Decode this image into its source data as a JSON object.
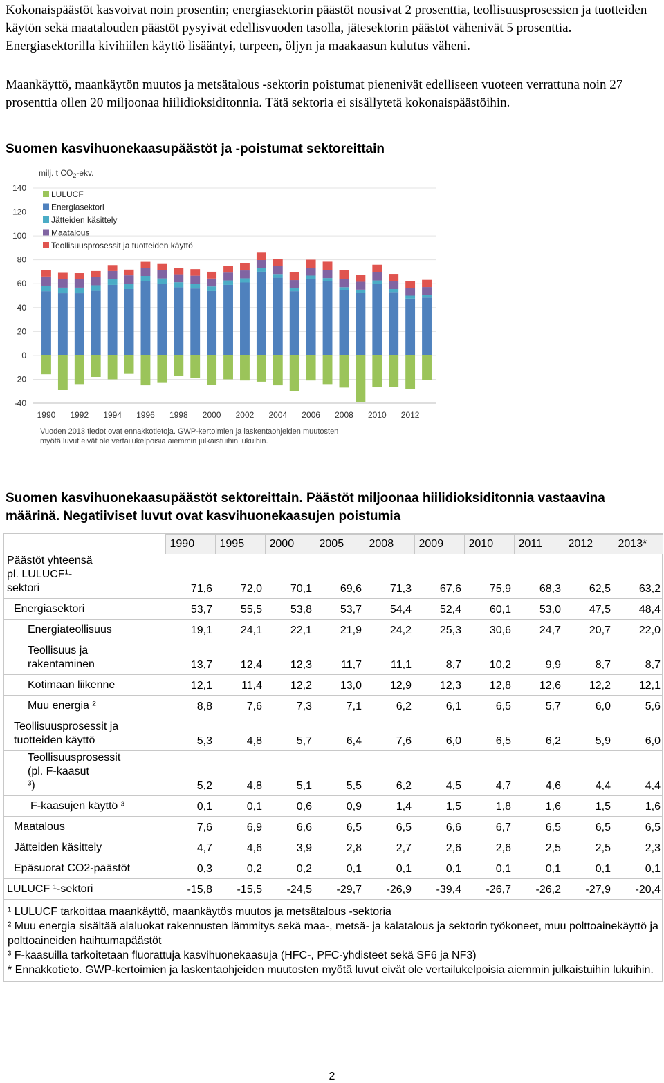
{
  "intro": {
    "paragraph1": "Kokonaispäästöt kasvoivat noin prosentin; energiasektorin päästöt nousivat 2 prosenttia, teollisuusprosessien ja tuotteiden käytön sekä maatalouden päästöt pysyivät edellisvuoden tasolla, jätesektorin päästöt vähenivät 5 prosenttia. Energiasektorilla kivihiilen käyttö lisääntyi, turpeen, öljyn ja maakaasun kulutus väheni.",
    "paragraph2": "Maankäyttö, maankäytön muutos ja metsätalous -sektorin poistumat pienenivät edelliseen vuoteen verrattuna noin 27 prosenttia ollen 20 miljoonaa hiilidioksiditonnia. Tätä sektoria ei sisällytetä kokonaispäästöihin."
  },
  "chart_section": {
    "title": "Suomen kasvihuonekaasupäästöt ja -poistumat sektoreittain"
  },
  "chart_data": {
    "type": "bar",
    "stacked": true,
    "unit_label_prefix": "milj. t CO",
    "unit_label_sub": "2",
    "unit_label_suffix": "-ekv.",
    "ylim": [
      -40,
      140
    ],
    "yticks": [
      -40,
      -20,
      0,
      20,
      40,
      60,
      80,
      100,
      120,
      140
    ],
    "x": [
      1990,
      1991,
      1992,
      1993,
      1994,
      1995,
      1996,
      1997,
      1998,
      1999,
      2000,
      2001,
      2002,
      2003,
      2004,
      2005,
      2006,
      2007,
      2008,
      2009,
      2010,
      2011,
      2012,
      2013
    ],
    "xtick_labels": [
      "1990",
      "1992",
      "1994",
      "1996",
      "1998",
      "2000",
      "2002",
      "2004",
      "2006",
      "2008",
      "2010",
      "2012"
    ],
    "grid": true,
    "legend_position": "top-left",
    "series": [
      {
        "name": "LULUCF",
        "color": "#9bc45a",
        "values": [
          -15.8,
          -29,
          -24,
          -18,
          -20,
          -15.5,
          -25,
          -23,
          -17,
          -19,
          -24.5,
          -20,
          -21,
          -22,
          -25,
          -29.7,
          -21,
          -24,
          -26.9,
          -39.4,
          -26.7,
          -26.2,
          -27.9,
          -20.4
        ]
      },
      {
        "name": "Energiasektori",
        "color": "#4f81bd",
        "values": [
          53.7,
          52,
          52,
          54,
          59,
          55.5,
          62,
          60,
          57,
          56,
          53.8,
          59,
          61,
          70,
          65,
          53.7,
          64,
          62,
          54.4,
          52.4,
          60.1,
          53.0,
          47.5,
          48.4
        ]
      },
      {
        "name": "Jätteiden käsittely",
        "color": "#4bacc6",
        "values": [
          4.7,
          4.7,
          4.7,
          4.7,
          4.6,
          4.6,
          4.5,
          4.4,
          4.2,
          4.0,
          3.9,
          3.7,
          3.5,
          3.3,
          3.1,
          2.8,
          2.8,
          2.7,
          2.7,
          2.6,
          2.6,
          2.5,
          2.5,
          2.3
        ]
      },
      {
        "name": "Maatalous",
        "color": "#8064a2",
        "values": [
          7.6,
          7.4,
          7.2,
          7.0,
          7.0,
          6.9,
          6.8,
          6.8,
          6.7,
          6.7,
          6.6,
          6.6,
          6.6,
          6.5,
          6.5,
          6.5,
          6.5,
          6.5,
          6.5,
          6.6,
          6.7,
          6.5,
          6.5,
          6.5
        ]
      },
      {
        "name": "Teollisuusprosessit ja tuotteiden käyttö",
        "color": "#e0544f",
        "values": [
          5.3,
          5.0,
          4.9,
          4.9,
          5.0,
          4.8,
          5.0,
          5.3,
          5.4,
          5.5,
          5.7,
          5.8,
          6.0,
          6.2,
          6.3,
          6.4,
          6.8,
          7.2,
          7.6,
          6.0,
          6.5,
          6.2,
          5.9,
          6.0
        ]
      }
    ],
    "footnote_line1": "Vuoden 2013 tiedot ovat ennakkotietoja. GWP-kertoimien ja laskentaohjeiden muutosten",
    "footnote_line2": "myötä luvut eivät ole vertailukelpoisia aiemmin julkaistuihin lukuihin."
  },
  "table_section": {
    "title": "Suomen kasvihuonekaasupäästöt sektoreittain. Päästöt miljoonaa hiilidioksiditonnia vastaavina määrinä. Negatiiviset luvut ovat kasvihuonekaasujen poistumia"
  },
  "table": {
    "years": [
      "1990",
      "1995",
      "2000",
      "2005",
      "2008",
      "2009",
      "2010",
      "2011",
      "2012",
      "2013*"
    ],
    "rows": [
      {
        "label": "Päästöt yhteensä pl. LULUCF¹-sektori",
        "level": 0,
        "values": [
          "71,6",
          "72,0",
          "70,1",
          "69,6",
          "71,3",
          "67,6",
          "75,9",
          "68,3",
          "62,5",
          "63,2"
        ]
      },
      {
        "label": "Energiasektori",
        "level": 1,
        "values": [
          "53,7",
          "55,5",
          "53,8",
          "53,7",
          "54,4",
          "52,4",
          "60,1",
          "53,0",
          "47,5",
          "48,4"
        ]
      },
      {
        "label": "Energiateollisuus",
        "level": 2,
        "values": [
          "19,1",
          "24,1",
          "22,1",
          "21,9",
          "24,2",
          "25,3",
          "30,6",
          "24,7",
          "20,7",
          "22,0"
        ]
      },
      {
        "label": "Teollisuus ja rakentaminen",
        "level": 2,
        "values": [
          "13,7",
          "12,4",
          "12,3",
          "11,7",
          "11,1",
          "8,7",
          "10,2",
          "9,9",
          "8,7",
          "8,7"
        ]
      },
      {
        "label": "Kotimaan liikenne",
        "level": 2,
        "values": [
          "12,1",
          "11,4",
          "12,2",
          "13,0",
          "12,9",
          "12,3",
          "12,8",
          "12,6",
          "12,2",
          "12,1"
        ]
      },
      {
        "label": "Muu energia ²",
        "level": 2,
        "values": [
          "8,8",
          "7,6",
          "7,3",
          "7,1",
          "6,2",
          "6,1",
          "6,5",
          "5,7",
          "6,0",
          "5,6"
        ]
      },
      {
        "label": "Teollisuusprosessit ja tuotteiden käyttö",
        "level": 1,
        "values": [
          "5,3",
          "4,8",
          "5,7",
          "6,4",
          "7,6",
          "6,0",
          "6,5",
          "6,2",
          "5,9",
          "6,0"
        ]
      },
      {
        "label": "Teollisuusprosessit (pl. F-kaasut ³)",
        "level": 2,
        "values": [
          "5,2",
          "4,8",
          "5,1",
          "5,5",
          "6,2",
          "4,5",
          "4,7",
          "4,6",
          "4,4",
          "4,4"
        ]
      },
      {
        "label": "F-kaasujen käyttö ³",
        "level": 3,
        "values": [
          "0,1",
          "0,1",
          "0,6",
          "0,9",
          "1,4",
          "1,5",
          "1,8",
          "1,6",
          "1,5",
          "1,6"
        ]
      },
      {
        "label": "Maatalous",
        "level": 1,
        "values": [
          "7,6",
          "6,9",
          "6,6",
          "6,5",
          "6,5",
          "6,6",
          "6,7",
          "6,5",
          "6,5",
          "6,5"
        ]
      },
      {
        "label": "Jätteiden käsittely",
        "level": 1,
        "values": [
          "4,7",
          "4,6",
          "3,9",
          "2,8",
          "2,7",
          "2,6",
          "2,6",
          "2,5",
          "2,5",
          "2,3"
        ]
      },
      {
        "label": "Epäsuorat CO2-päästöt",
        "level": 1,
        "values": [
          "0,3",
          "0,2",
          "0,2",
          "0,1",
          "0,1",
          "0,1",
          "0,1",
          "0,1",
          "0,1",
          "0,1"
        ]
      },
      {
        "label": "LULUCF ¹-sektori",
        "level": 0,
        "values": [
          "-15,8",
          "-15,5",
          "-24,5",
          "-29,7",
          "-26,9",
          "-39,4",
          "-26,7",
          "-26,2",
          "-27,9",
          "-20,4"
        ]
      }
    ],
    "notes": [
      "¹ LULUCF tarkoittaa maankäyttö, maankäytös muutos ja metsätalous -sektoria",
      "² Muu energia sisältää alaluokat rakennusten lämmitys sekä maa-, metsä- ja kalatalous ja sektorin työkoneet, muu polttoainekäyttö ja polttoaineiden haihtumapäästöt",
      "³ F-kaasuilla tarkoitetaan fluorattuja kasvihuonekaasuja (HFC-, PFC-yhdisteet sekä SF6 ja NF3)",
      "* Ennakkotieto. GWP-kertoimien ja laskentaohjeiden muutosten myötä luvut eivät ole vertailukelpoisia aiemmin julkaistuihin lukuihin."
    ]
  },
  "page": {
    "number": "2"
  }
}
